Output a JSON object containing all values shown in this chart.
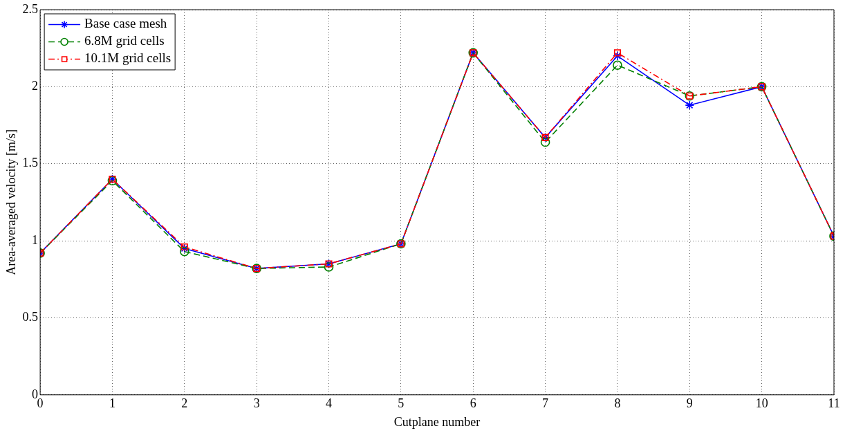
{
  "chart_data": {
    "type": "line",
    "xlabel": "Cutplane number",
    "ylabel": "Area-averaged velocity [m/s]",
    "x": [
      0,
      1,
      2,
      3,
      4,
      5,
      6,
      7,
      8,
      9,
      10,
      11
    ],
    "series": [
      {
        "name": "Base case mesh",
        "color": "#0000ff",
        "marker": "cross",
        "line_style": "solid",
        "values": [
          0.92,
          1.4,
          0.95,
          0.82,
          0.85,
          0.98,
          2.22,
          1.67,
          2.2,
          1.88,
          2.0,
          1.03
        ]
      },
      {
        "name": "6.8M grid cells",
        "color": "#008000",
        "marker": "circle",
        "line_style": "dashed",
        "values": [
          0.92,
          1.39,
          0.93,
          0.82,
          0.83,
          0.98,
          2.22,
          1.64,
          2.14,
          1.94,
          2.0,
          1.03
        ]
      },
      {
        "name": "10.1M grid cells",
        "color": "#ff0000",
        "marker": "square",
        "line_style": "dashdot",
        "values": [
          0.92,
          1.4,
          0.96,
          0.82,
          0.85,
          0.98,
          2.22,
          1.67,
          2.22,
          1.94,
          2.0,
          1.03
        ]
      }
    ],
    "xlim": [
      0,
      11
    ],
    "xticks": [
      0,
      1,
      2,
      3,
      4,
      5,
      6,
      7,
      8,
      9,
      10,
      11
    ],
    "ylim": [
      0,
      2.5
    ],
    "yticks": [
      0,
      0.5,
      1,
      1.5,
      2,
      2.5
    ],
    "grid": true,
    "legend": "top left"
  }
}
